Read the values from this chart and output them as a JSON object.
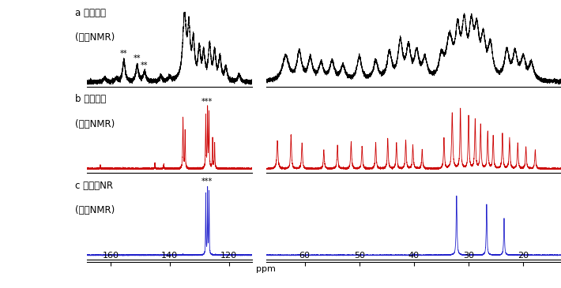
{
  "title_a_line1": "a 固体試料",
  "title_a_line2": "(固体NMR)",
  "title_b_line1": "b 溶液試料",
  "title_b_line2": "(溶液NMR)",
  "title_c_line1": "c 未処理NR",
  "title_c_line2": "(溶液NMR)",
  "color_a": "#000000",
  "color_b": "#cc0000",
  "color_c": "#2222cc",
  "left_xlim": [
    168,
    112
  ],
  "right_xlim": [
    67,
    10
  ],
  "left_xticks": [
    160,
    140,
    120
  ],
  "right_xticks": [
    60,
    50,
    40,
    30,
    20
  ],
  "xlabel_left": "ppm",
  "xlabel_right": "ppm",
  "bg_color": "#ffffff"
}
